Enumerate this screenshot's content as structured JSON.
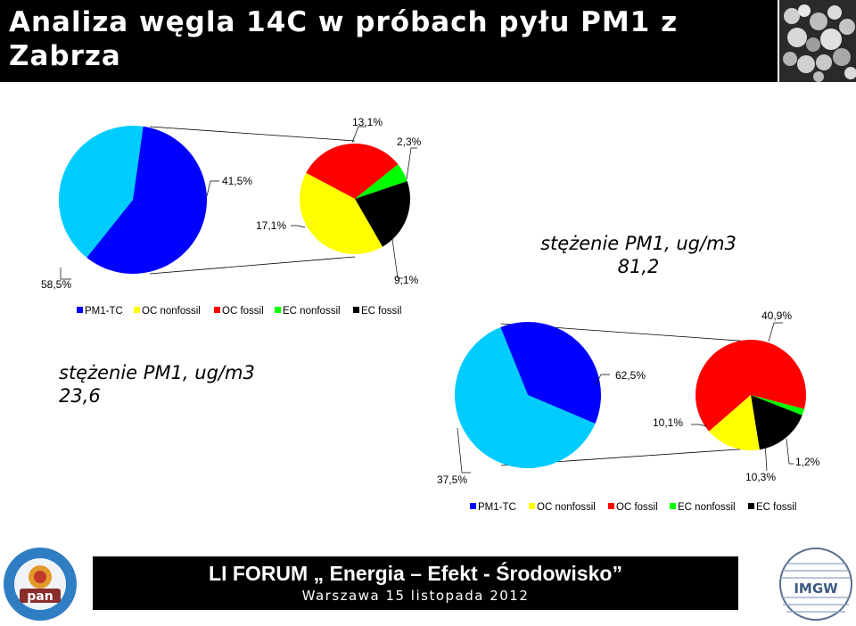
{
  "title": "Analiza węgla 14C w próbach pyłu PM1 z Zabrza",
  "concentration_1": {
    "label": "stężenie PM1, ug/m3",
    "value": "81,2"
  },
  "concentration_2": {
    "label": "stężenie PM1, ug/m3",
    "value": "23,6"
  },
  "footer": {
    "title": "LI FORUM „ Energia – Efekt - Środowisko”",
    "subtitle": "Warszawa 15 listopada 2012"
  },
  "logos": {
    "pan_text": "pan",
    "imgw_text": "IMGW"
  },
  "colors": {
    "pm1_tc": "#0000ff",
    "oc_nonfossil": "#00ccff",
    "oc_fossil": "#ff0000",
    "ec_nonfossil": "#00ff00",
    "ec_fossil": "#000000",
    "yellow": "#ffff00"
  },
  "chart_data": [
    {
      "type": "pie",
      "subtype": "pie-of-pie",
      "title": "",
      "legend": [
        "PM1-TC",
        "OC nonfossil",
        "OC fossil",
        "EC nonfossil",
        "EC fossil"
      ],
      "legend_position": "bottom",
      "main_pie": {
        "labels": [
          "58,5%",
          "41,5%"
        ],
        "values": [
          58.5,
          41.5
        ],
        "colors": [
          "#0000ff",
          "#00ccff"
        ]
      },
      "secondary_pie": {
        "labels": [
          "13,1%",
          "2,3%",
          "9,1%",
          "17,1%"
        ],
        "values": [
          13.1,
          2.3,
          9.1,
          17.1
        ],
        "colors": [
          "#ff0000",
          "#00ff00",
          "#000000",
          "#ffff00"
        ]
      }
    },
    {
      "type": "pie",
      "subtype": "pie-of-pie",
      "title": "",
      "legend": [
        "PM1-TC",
        "OC nonfossil",
        "OC fossil",
        "EC nonfossil",
        "EC fossil"
      ],
      "legend_position": "bottom",
      "main_pie": {
        "labels": [
          "37,5%",
          "62,5%"
        ],
        "values": [
          37.5,
          62.5
        ],
        "colors": [
          "#0000ff",
          "#00ccff"
        ]
      },
      "secondary_pie": {
        "labels": [
          "40,9%",
          "1,2%",
          "10,3%",
          "10,1%"
        ],
        "values": [
          40.9,
          1.2,
          10.3,
          10.1
        ],
        "colors": [
          "#ff0000",
          "#00ff00",
          "#000000",
          "#ffff00"
        ]
      }
    }
  ]
}
